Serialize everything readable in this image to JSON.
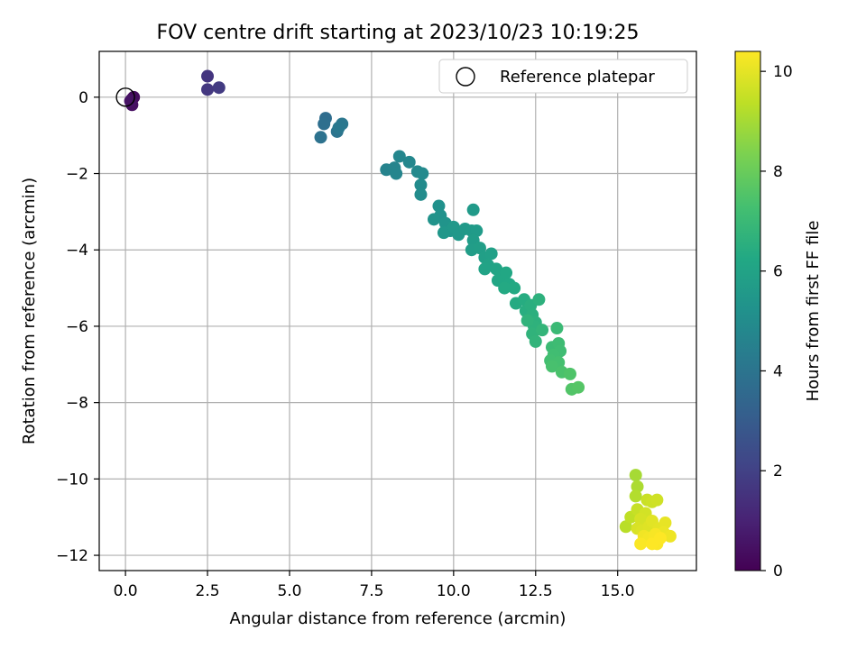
{
  "chart_data": {
    "type": "scatter",
    "title": "FOV centre drift starting at 2023/10/23 10:19:25",
    "xlabel": "Angular distance from reference (arcmin)",
    "ylabel": "Rotation from reference (arcmin)",
    "xlim": [
      -0.8,
      17.4
    ],
    "ylim": [
      -12.4,
      1.2
    ],
    "xticks": [
      0.0,
      2.5,
      5.0,
      7.5,
      10.0,
      12.5,
      15.0
    ],
    "xtick_labels": [
      "0.0",
      "2.5",
      "5.0",
      "7.5",
      "10.0",
      "12.5",
      "15.0"
    ],
    "yticks": [
      0,
      -2,
      -4,
      -6,
      -8,
      -10,
      -12
    ],
    "ytick_labels": [
      "0",
      "−2",
      "−4",
      "−6",
      "−8",
      "−10",
      "−12"
    ],
    "grid": true,
    "legend": {
      "placement": "top-right",
      "entries": [
        "Reference platepar"
      ]
    },
    "colorbar": {
      "label": "Hours from first FF file",
      "range": [
        0,
        10.4
      ],
      "ticks": [
        0,
        2,
        4,
        6,
        8,
        10
      ],
      "tick_labels": [
        "0",
        "2",
        "4",
        "6",
        "8",
        "10"
      ],
      "colormap": "viridis"
    },
    "reference_point": {
      "x": 0.0,
      "y": 0.0
    },
    "series": [
      {
        "points": [
          [
            0.2,
            -0.05,
            0.2
          ],
          [
            0.25,
            0.0,
            0.3
          ],
          [
            0.2,
            -0.2,
            0.4
          ],
          [
            0.15,
            -0.1,
            0.5
          ],
          [
            2.5,
            0.55,
            1.6
          ],
          [
            2.5,
            0.2,
            1.7
          ],
          [
            2.85,
            0.25,
            1.8
          ],
          [
            6.1,
            -0.55,
            3.7
          ],
          [
            6.05,
            -0.7,
            3.8
          ],
          [
            5.95,
            -1.05,
            3.9
          ],
          [
            6.45,
            -0.9,
            4.0
          ],
          [
            6.6,
            -0.7,
            4.1
          ],
          [
            6.5,
            -0.8,
            4.15
          ],
          [
            7.95,
            -1.9,
            4.6
          ],
          [
            8.2,
            -1.85,
            4.65
          ],
          [
            8.25,
            -2.0,
            4.7
          ],
          [
            8.35,
            -1.55,
            4.75
          ],
          [
            8.65,
            -1.7,
            4.8
          ],
          [
            8.9,
            -1.95,
            4.85
          ],
          [
            9.05,
            -2.0,
            4.9
          ],
          [
            9.0,
            -2.3,
            4.95
          ],
          [
            9.0,
            -2.55,
            5.0
          ],
          [
            9.55,
            -2.85,
            5.2
          ],
          [
            9.6,
            -3.1,
            5.25
          ],
          [
            9.4,
            -3.2,
            5.3
          ],
          [
            9.75,
            -3.3,
            5.35
          ],
          [
            9.9,
            -3.5,
            5.4
          ],
          [
            9.7,
            -3.55,
            5.45
          ],
          [
            10.0,
            -3.4,
            5.5
          ],
          [
            10.15,
            -3.6,
            5.5
          ],
          [
            10.35,
            -3.45,
            5.55
          ],
          [
            10.55,
            -3.5,
            5.6
          ],
          [
            10.6,
            -2.95,
            5.6
          ],
          [
            10.7,
            -3.5,
            5.65
          ],
          [
            10.6,
            -3.75,
            5.7
          ],
          [
            10.55,
            -4.0,
            5.75
          ],
          [
            10.8,
            -3.95,
            5.8
          ],
          [
            10.95,
            -4.2,
            5.85
          ],
          [
            11.15,
            -4.1,
            5.9
          ],
          [
            11.05,
            -4.4,
            5.95
          ],
          [
            10.95,
            -4.5,
            6.0
          ],
          [
            11.3,
            -4.5,
            6.05
          ],
          [
            11.45,
            -4.65,
            6.1
          ],
          [
            11.35,
            -4.8,
            6.15
          ],
          [
            11.55,
            -4.8,
            6.2
          ],
          [
            11.6,
            -4.6,
            6.2
          ],
          [
            11.7,
            -4.9,
            6.25
          ],
          [
            11.85,
            -5.0,
            6.3
          ],
          [
            11.55,
            -5.0,
            6.3
          ],
          [
            11.9,
            -5.4,
            6.35
          ],
          [
            12.15,
            -5.3,
            6.4
          ],
          [
            12.2,
            -5.6,
            6.45
          ],
          [
            12.35,
            -5.45,
            6.5
          ],
          [
            12.4,
            -5.7,
            6.55
          ],
          [
            12.5,
            -5.9,
            6.6
          ],
          [
            12.6,
            -5.3,
            6.6
          ],
          [
            12.45,
            -6.0,
            6.65
          ],
          [
            12.4,
            -6.2,
            6.7
          ],
          [
            12.5,
            -6.4,
            6.75
          ],
          [
            12.25,
            -5.85,
            6.7
          ],
          [
            12.7,
            -6.1,
            6.8
          ],
          [
            13.15,
            -6.05,
            7.0
          ],
          [
            13.0,
            -6.55,
            7.05
          ],
          [
            13.2,
            -6.45,
            7.1
          ],
          [
            13.25,
            -6.65,
            7.15
          ],
          [
            13.05,
            -6.75,
            7.2
          ],
          [
            12.95,
            -6.9,
            7.25
          ],
          [
            13.2,
            -6.95,
            7.3
          ],
          [
            13.0,
            -7.05,
            7.35
          ],
          [
            13.3,
            -7.2,
            7.4
          ],
          [
            13.55,
            -7.25,
            7.5
          ],
          [
            13.6,
            -7.65,
            7.55
          ],
          [
            13.8,
            -7.6,
            7.6
          ],
          [
            15.55,
            -9.9,
            9.0
          ],
          [
            15.6,
            -10.2,
            9.1
          ],
          [
            15.55,
            -10.45,
            9.2
          ],
          [
            15.25,
            -11.25,
            9.3
          ],
          [
            15.4,
            -11.0,
            9.4
          ],
          [
            15.6,
            -10.8,
            9.5
          ],
          [
            15.9,
            -10.55,
            9.55
          ],
          [
            16.05,
            -10.6,
            9.6
          ],
          [
            16.2,
            -10.55,
            9.65
          ],
          [
            15.85,
            -10.9,
            9.7
          ],
          [
            15.7,
            -11.05,
            9.75
          ],
          [
            15.6,
            -11.3,
            9.8
          ],
          [
            15.75,
            -11.35,
            9.85
          ],
          [
            15.95,
            -11.25,
            9.9
          ],
          [
            16.05,
            -11.1,
            9.95
          ],
          [
            16.25,
            -11.3,
            10.0
          ],
          [
            16.45,
            -11.15,
            10.05
          ],
          [
            16.4,
            -11.4,
            10.1
          ],
          [
            16.6,
            -11.5,
            10.15
          ],
          [
            15.8,
            -11.5,
            10.2
          ],
          [
            15.95,
            -11.55,
            10.25
          ],
          [
            16.1,
            -11.6,
            10.3
          ],
          [
            16.15,
            -11.45,
            10.3
          ],
          [
            16.2,
            -11.7,
            10.35
          ],
          [
            15.7,
            -11.7,
            10.35
          ],
          [
            16.05,
            -11.7,
            10.4
          ],
          [
            16.3,
            -11.55,
            10.4
          ]
        ]
      }
    ]
  }
}
